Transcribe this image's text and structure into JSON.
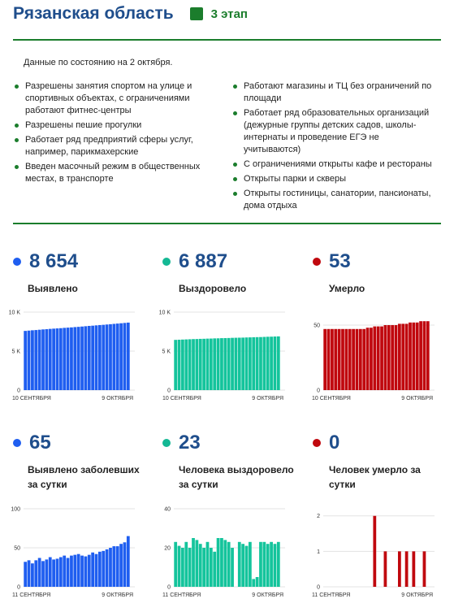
{
  "header": {
    "region": "Рязанская область",
    "stage": "3 этап"
  },
  "status": {
    "date_text": "Данные по состоянию на 2 октября."
  },
  "rules": {
    "left": [
      "Разрешены занятия спортом на улице и спортивных объектах, с ограничениями работают фитнес-центры",
      "Разрешены пешие прогулки",
      "Работает ряд предприятий сферы услуг, например, парикмахерские",
      "Введен масочный режим в общественных местах, в транспорте"
    ],
    "right": [
      "Работают магазины и ТЦ без ограничений по площади",
      "Работает ряд образовательных организаций (дежурные группы детских садов, школы-интернаты и проведение ЕГЭ не учитываются)",
      "С ограничениями открыты кафе и рестораны",
      "Открыты парки и скверы",
      "Открыты гостиницы, санатории, пансионаты, дома отдыха"
    ]
  },
  "stats": [
    {
      "value": "8 654",
      "label": "Выявлено",
      "color": "#1f5ef0"
    },
    {
      "value": "6 887",
      "label": "Выздоровело",
      "color": "#14b894"
    },
    {
      "value": "53",
      "label": "Умерло",
      "color": "#c0080e"
    },
    {
      "value": "65",
      "label": "Выявлено заболевших за сутки",
      "color": "#1f5ef0"
    },
    {
      "value": "23",
      "label": "Человека выздоровело за сутки",
      "color": "#14b894"
    },
    {
      "value": "0",
      "label": "Человек умерло за сутки",
      "color": "#c0080e"
    }
  ],
  "chart_data": [
    {
      "type": "bar",
      "color": "#1f5ef0",
      "ylim": [
        0,
        10000
      ],
      "yticks": [
        {
          "value": 10000,
          "label": "10 K"
        },
        {
          "value": 5000,
          "label": "5 K"
        },
        {
          "value": 0,
          "label": "0"
        }
      ],
      "xlabels": [
        "10 СЕНТЯБРЯ",
        "9 ОКТЯБРЯ"
      ],
      "values": [
        7590,
        7630,
        7670,
        7700,
        7740,
        7780,
        7810,
        7850,
        7880,
        7910,
        7940,
        7980,
        8010,
        8040,
        8080,
        8110,
        8150,
        8190,
        8230,
        8260,
        8300,
        8340,
        8370,
        8410,
        8450,
        8490,
        8530,
        8570,
        8610,
        8654
      ]
    },
    {
      "type": "bar",
      "color": "#14c49c",
      "ylim": [
        0,
        10000
      ],
      "yticks": [
        {
          "value": 10000,
          "label": "10 K"
        },
        {
          "value": 5000,
          "label": "5 K"
        },
        {
          "value": 0,
          "label": "0"
        }
      ],
      "xlabels": [
        "10 СЕНТЯБРЯ",
        "9 ОКТЯБРЯ"
      ],
      "values": [
        6440,
        6460,
        6480,
        6500,
        6520,
        6540,
        6550,
        6570,
        6580,
        6600,
        6610,
        6630,
        6640,
        6660,
        6670,
        6680,
        6700,
        6710,
        6720,
        6730,
        6750,
        6760,
        6780,
        6790,
        6800,
        6820,
        6840,
        6850,
        6870,
        6887
      ]
    },
    {
      "type": "bar",
      "color": "#c0080e",
      "ylim": [
        0,
        60
      ],
      "yticks": [
        {
          "value": 50,
          "label": "50"
        },
        {
          "value": 0,
          "label": "0"
        }
      ],
      "xlabels": [
        "10 СЕНТЯБРЯ",
        "9 ОКТЯБРЯ"
      ],
      "values": [
        47,
        47,
        47,
        47,
        47,
        47,
        47,
        47,
        47,
        47,
        47,
        47,
        48,
        48,
        49,
        49,
        49,
        50,
        50,
        50,
        50,
        51,
        51,
        51,
        52,
        52,
        52,
        53,
        53,
        53
      ]
    },
    {
      "type": "bar",
      "color": "#1f5ef0",
      "ylim": [
        0,
        100
      ],
      "yticks": [
        {
          "value": 100,
          "label": "100"
        },
        {
          "value": 50,
          "label": "50"
        },
        {
          "value": 0,
          "label": "0"
        }
      ],
      "xlabels": [
        "11 СЕНТЯБРЯ",
        "9 ОКТЯБРЯ"
      ],
      "values": [
        32,
        34,
        30,
        34,
        37,
        33,
        35,
        38,
        35,
        36,
        38,
        40,
        37,
        40,
        41,
        42,
        40,
        39,
        41,
        44,
        42,
        45,
        46,
        48,
        50,
        52,
        52,
        55,
        57,
        65
      ]
    },
    {
      "type": "bar",
      "color": "#14c49c",
      "ylim": [
        0,
        40
      ],
      "yticks": [
        {
          "value": 40,
          "label": "40"
        },
        {
          "value": 20,
          "label": "20"
        },
        {
          "value": 0,
          "label": "0"
        }
      ],
      "xlabels": [
        "11 СЕНТЯБРЯ",
        "9 ОКТЯБРЯ"
      ],
      "values": [
        23,
        21,
        20,
        23,
        20,
        25,
        24,
        22,
        20,
        23,
        20,
        18,
        25,
        25,
        24,
        23,
        20,
        0,
        23,
        22,
        21,
        23,
        4,
        5,
        23,
        23,
        22,
        23,
        22,
        23
      ]
    },
    {
      "type": "bar",
      "color": "#c0080e",
      "ylim": [
        0,
        2.2
      ],
      "yticks": [
        {
          "value": 2,
          "label": "2"
        },
        {
          "value": 1,
          "label": "1"
        },
        {
          "value": 0,
          "label": "0"
        }
      ],
      "xlabels": [
        "11 СЕНТЯБРЯ",
        "9 ОКТЯБРЯ"
      ],
      "values": [
        0,
        0,
        0,
        0,
        0,
        0,
        0,
        0,
        0,
        0,
        0,
        0,
        0,
        0,
        2,
        0,
        0,
        1,
        0,
        0,
        0,
        1,
        0,
        1,
        0,
        1,
        0,
        0,
        1,
        0
      ]
    }
  ]
}
